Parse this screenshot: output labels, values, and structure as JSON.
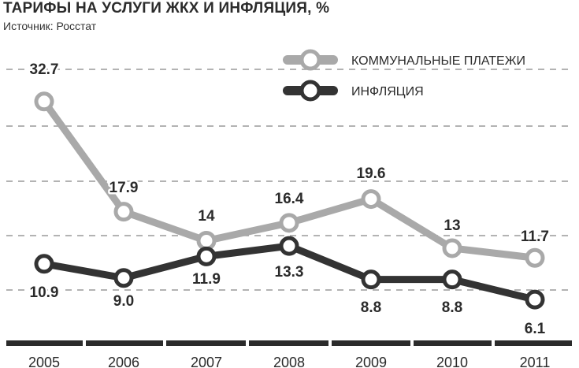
{
  "header": {
    "title": "ТАРИФЫ НА УСЛУГИ ЖКХ И ИНФЛЯЦИЯ, %",
    "source": "Источник: Росстат"
  },
  "colors": {
    "utilities": "#a9a9a9",
    "inflation": "#333333",
    "grid": "#9a9a9a",
    "axis": "#2b2b2b"
  },
  "chart_data": {
    "type": "line",
    "title": "ТАРИФЫ НА УСЛУГИ ЖКХ И ИНФЛЯЦИЯ, %",
    "subtitle": "Источник: Росстат",
    "x": [
      "2005",
      "2006",
      "2007",
      "2008",
      "2009",
      "2010",
      "2011"
    ],
    "series": [
      {
        "name": "КОММУНАЛЬНЫЕ ПЛАТЕЖИ",
        "color": "#a9a9a9",
        "values": [
          32.7,
          17.9,
          14,
          16.4,
          19.6,
          13,
          11.7
        ],
        "labels": [
          "32.7",
          "17.9",
          "14",
          "16.4",
          "19.6",
          "13",
          "11.7"
        ]
      },
      {
        "name": "ИНФЛЯЦИЯ",
        "color": "#333333",
        "values": [
          10.9,
          9.0,
          11.9,
          13.3,
          8.8,
          8.8,
          6.1
        ],
        "labels": [
          "10.9",
          "9.0",
          "11.9",
          "13.3",
          "8.8",
          "8.8",
          "6.1"
        ]
      }
    ],
    "xlabel": "",
    "ylabel": "",
    "ylim": [
      0,
      38
    ],
    "grid": true,
    "legend": "top-right"
  }
}
